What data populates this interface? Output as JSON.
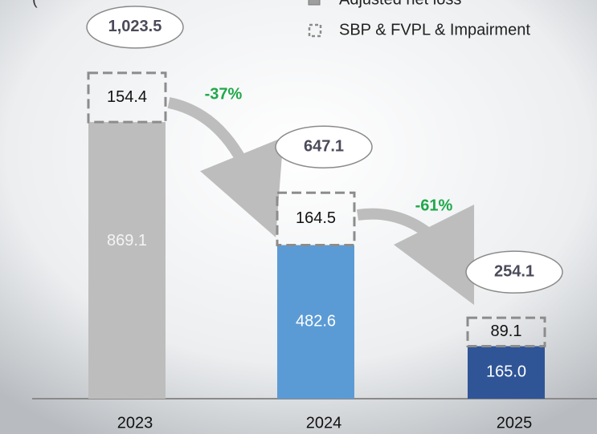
{
  "chart_data": {
    "type": "stacked_bar",
    "subtitle": "(",
    "categories": [
      "2023",
      "2024",
      "2025"
    ],
    "series": [
      {
        "name": "Adjusted net loss",
        "colors": [
          "#bdbdbd",
          "#5b9bd5",
          "#2f5597"
        ],
        "color": "#9e9e9e",
        "values": [
          869.1,
          482.6,
          165.0
        ],
        "value_labels": [
          "869.1",
          "482.6",
          "165.0"
        ]
      },
      {
        "name": "SBP & FVPL & Impairment",
        "color": "#8c8c8c",
        "dashed": true,
        "values": [
          154.4,
          164.5,
          89.1
        ]
      }
    ],
    "totals": {
      "values": [
        1023.5,
        647.1,
        254.1
      ],
      "value_labels": [
        "1,023.5",
        "647.1",
        "254.1"
      ]
    },
    "changes": [
      "-37%",
      "-61%"
    ],
    "change_color": "#1ea84a",
    "ylim": [
      0,
      1250
    ]
  }
}
